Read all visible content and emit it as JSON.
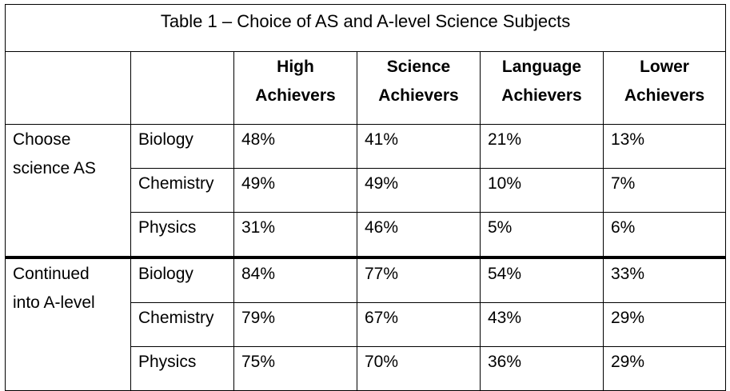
{
  "table": {
    "title": "Table 1 – Choice of AS and A-level Science Subjects",
    "columns": [
      {
        "line1": "High",
        "line2": "Achievers"
      },
      {
        "line1": "Science",
        "line2": "Achievers"
      },
      {
        "line1": "Language",
        "line2": "Achievers"
      },
      {
        "line1": "Lower",
        "line2": "Achievers"
      }
    ],
    "groups": [
      {
        "label_line1": "Choose",
        "label_line2": "science AS",
        "rows": [
          {
            "subject": "Biology",
            "values": [
              "48%",
              "41%",
              "21%",
              "13%"
            ]
          },
          {
            "subject": "Chemistry",
            "values": [
              "49%",
              "49%",
              "10%",
              "7%"
            ]
          },
          {
            "subject": "Physics",
            "values": [
              "31%",
              "46%",
              "5%",
              "6%"
            ]
          }
        ]
      },
      {
        "label_line1": "Continued",
        "label_line2": "into A-level",
        "rows": [
          {
            "subject": "Biology",
            "values": [
              "84%",
              "77%",
              "54%",
              "33%"
            ]
          },
          {
            "subject": "Chemistry",
            "values": [
              "79%",
              "67%",
              "43%",
              "29%"
            ]
          },
          {
            "subject": "Physics",
            "values": [
              "75%",
              "70%",
              "36%",
              "29%"
            ]
          }
        ]
      }
    ]
  }
}
